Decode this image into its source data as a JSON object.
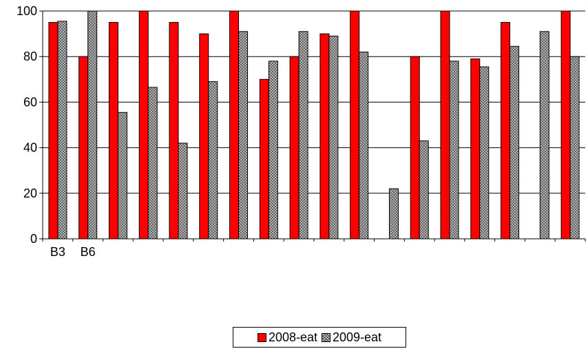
{
  "chart_data": {
    "type": "bar",
    "categories": [
      "B3",
      "B6",
      "",
      "",
      "",
      "",
      "",
      "",
      "",
      "",
      "",
      "",
      "",
      "",
      "",
      "",
      "",
      ""
    ],
    "series": [
      {
        "name": "2008-eat",
        "values": [
          95,
          80,
          95,
          100,
          95,
          90,
          100,
          70,
          80,
          90,
          100,
          0,
          80,
          100,
          79,
          95,
          0,
          100
        ]
      },
      {
        "name": "2009-eat",
        "values": [
          95.5,
          100,
          55.5,
          66.5,
          42,
          69,
          91,
          78,
          91,
          89,
          82,
          22,
          43,
          78,
          75.5,
          84.5,
          91,
          80
        ]
      }
    ],
    "ylim": [
      0,
      100
    ],
    "yticks": [
      "0",
      "20",
      "40",
      "60",
      "80",
      "100"
    ],
    "grid": true,
    "legend_position": "bottom",
    "colors": {
      "2008-eat": "#ff0000",
      "2009-eat": "#c0c0c0"
    }
  }
}
